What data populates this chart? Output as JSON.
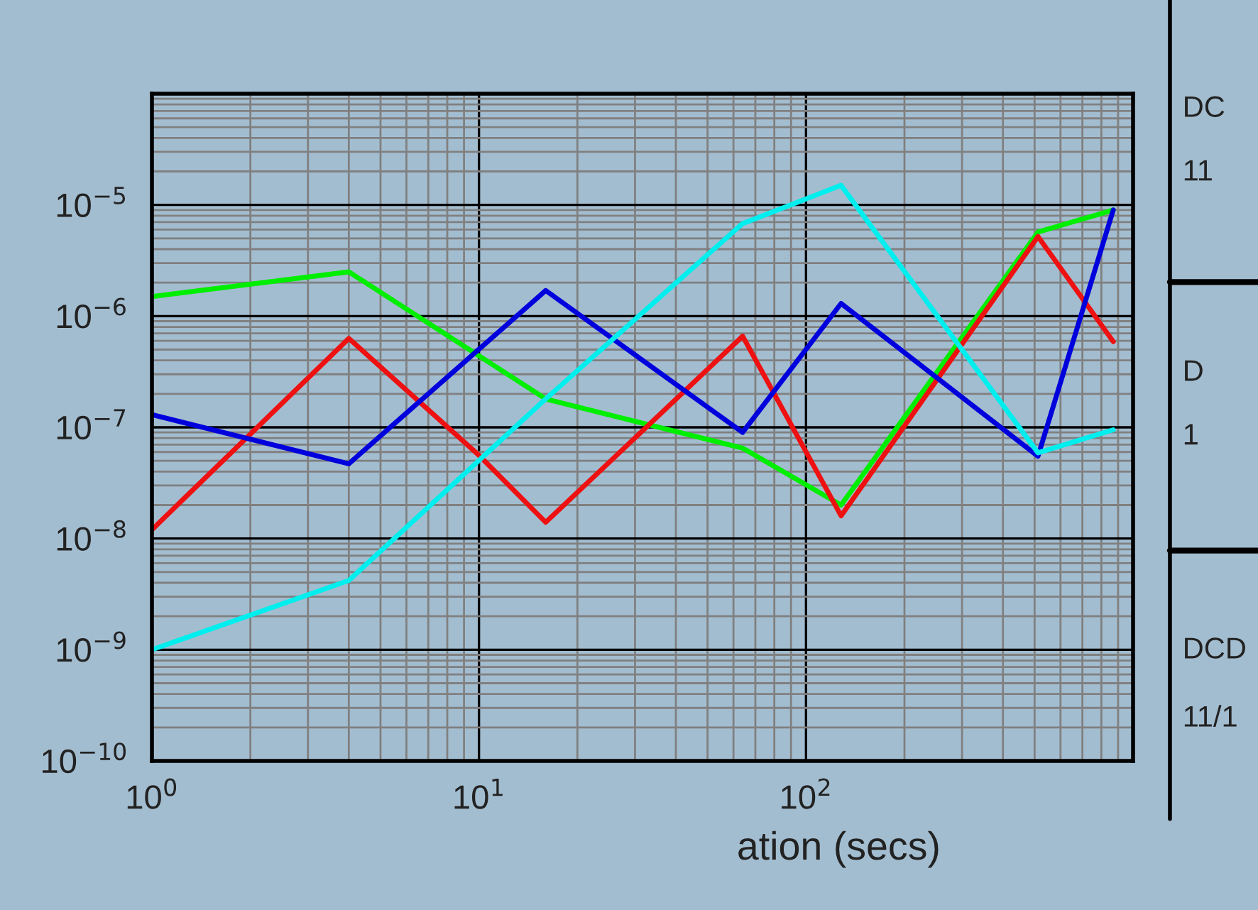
{
  "chart_data": {
    "type": "line",
    "xlabel": "ation (secs)",
    "log": "xy",
    "grid": true,
    "xlim": [
      1,
      1000
    ],
    "ylim": [
      1e-10,
      0.0001
    ],
    "xticks": [
      {
        "value": 1,
        "label": "10$^{0}$"
      },
      {
        "value": 10,
        "label": "10$^{1}$"
      },
      {
        "value": 100,
        "label": "10$^{2}$"
      }
    ],
    "yticks": [
      {
        "value": 1e-10,
        "label": "10$^{−10}$"
      },
      {
        "value": 1e-09,
        "label": "10$^{−9}$"
      },
      {
        "value": 1e-08,
        "label": "10$^{−8}$"
      },
      {
        "value": 1e-07,
        "label": "10$^{−7}$"
      },
      {
        "value": 1e-06,
        "label": "10$^{−6}$"
      },
      {
        "value": 1e-05,
        "label": "10$^{−5}$"
      }
    ],
    "series": [
      {
        "color": "#00ee00",
        "x": [
          1,
          4,
          16,
          64,
          128,
          512,
          870
        ],
        "values": [
          1.5e-06,
          2.5e-06,
          1.8e-07,
          6.5e-08,
          2e-08,
          5.7e-06,
          9e-06
        ]
      },
      {
        "color": "#ee1111",
        "x": [
          1,
          4,
          10,
          16,
          64,
          128,
          512,
          870
        ],
        "values": [
          1.2e-08,
          6.3e-07,
          5.6e-08,
          1.4e-08,
          6.6e-07,
          1.6e-08,
          5.2e-06,
          5.9e-07
        ]
      },
      {
        "color": "#0000dd",
        "x": [
          1,
          4,
          16,
          64,
          128,
          512,
          870
        ],
        "values": [
          1.3e-07,
          4.7e-08,
          1.7e-06,
          9e-08,
          1.3e-06,
          5.5e-08,
          9e-06
        ]
      },
      {
        "color": "#00eeee",
        "x": [
          1,
          4,
          16,
          64,
          128,
          512,
          870
        ],
        "values": [
          1e-09,
          4.2e-09,
          1.8e-07,
          6.8e-06,
          1.5e-05,
          5.9e-08,
          9.5e-08
        ]
      }
    ],
    "annotations": [
      "DC",
      "11",
      "D",
      "1",
      "DCD",
      "11/1"
    ]
  }
}
